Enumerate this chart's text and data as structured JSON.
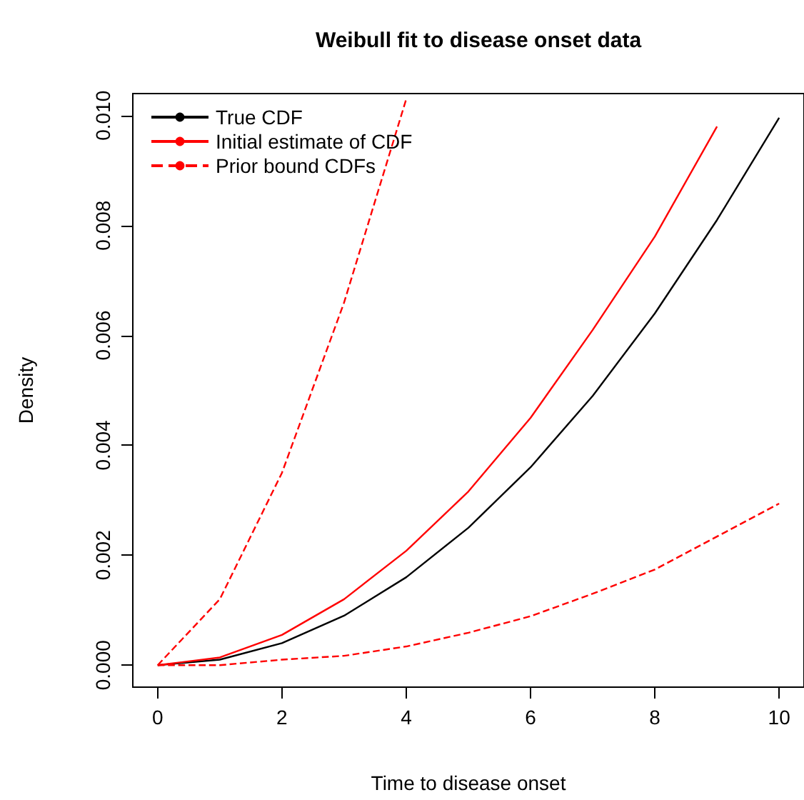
{
  "chart_data": {
    "type": "line",
    "title": "Weibull fit to disease onset data",
    "xlabel": "Time to disease onset",
    "ylabel": "Density",
    "x": [
      0,
      1,
      2,
      3,
      4,
      5,
      6,
      7,
      8,
      9,
      10
    ],
    "series": [
      {
        "name": "True CDF",
        "color": "#000000",
        "line_style": "solid",
        "values": [
          0,
          0.0001,
          0.0004,
          0.0009,
          0.0016,
          0.0025,
          0.0036,
          0.0049,
          0.0064,
          0.0081,
          0.00996
        ]
      },
      {
        "name": "Initial estimate of CDF",
        "color": "#ff0000",
        "line_style": "solid",
        "values": [
          0,
          0.00014,
          0.00055,
          0.0012,
          0.00208,
          0.00316,
          0.0045,
          0.0061,
          0.0078,
          0.0098,
          null
        ]
      },
      {
        "name": "Prior bound CDFs",
        "color": "#ff0000",
        "line_style": "dashed",
        "x": [
          0,
          1,
          2,
          3,
          4
        ],
        "values": [
          0,
          0.0012,
          0.0035,
          0.0066,
          0.0103
        ]
      },
      {
        "color": "#ff0000",
        "line_style": "dashed",
        "values": [
          0,
          0,
          0.0001,
          0.00017,
          0.00034,
          0.00059,
          0.00089,
          0.0013,
          0.00174,
          0.00234,
          0.00294
        ]
      }
    ],
    "xlim": [
      -0.4,
      10.4
    ],
    "ylim": [
      -0.0004,
      0.0104
    ],
    "xticks": [
      0,
      2,
      4,
      6,
      8,
      10
    ],
    "yticks": [
      {
        "value": 0,
        "label": "0.000"
      },
      {
        "value": 0.002,
        "label": "0.002"
      },
      {
        "value": 0.004,
        "label": "0.004"
      },
      {
        "value": 0.006,
        "label": "0.006"
      },
      {
        "value": 0.008,
        "label": "0.008"
      },
      {
        "value": 0.01,
        "label": "0.010"
      }
    ],
    "legend": "top left",
    "grid": false,
    "marker": "none"
  }
}
